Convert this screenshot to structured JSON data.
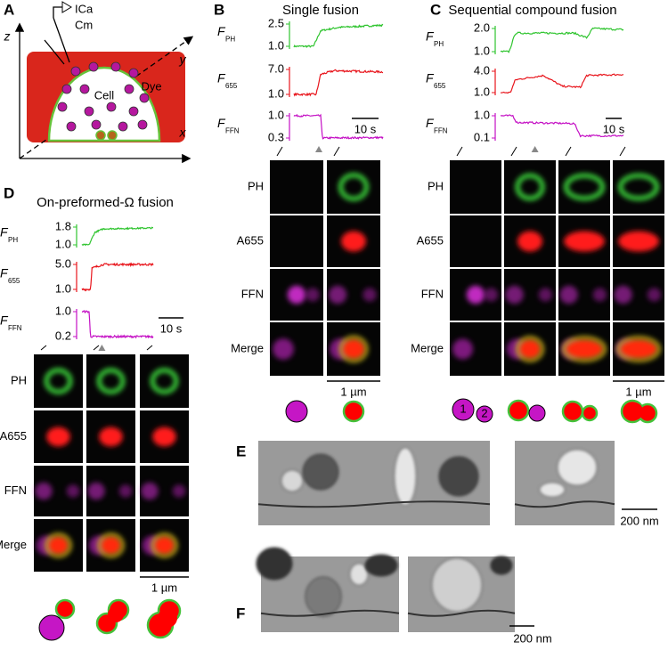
{
  "panels": {
    "A": {
      "label": "A",
      "electrode": [
        "ICa",
        "Cm"
      ],
      "cell": "Cell",
      "dye": "Dye",
      "axes": [
        "z",
        "y",
        "x"
      ]
    },
    "B": {
      "label": "B",
      "title": "Single fusion",
      "traces": [
        {
          "symbol": "F",
          "sub": "PH",
          "ticks": [
            "2.5",
            "1.0"
          ]
        },
        {
          "symbol": "F",
          "sub": "655",
          "ticks": [
            "7.0",
            "1.0"
          ]
        },
        {
          "symbol": "F",
          "sub": "FFN",
          "ticks": [
            "1.0",
            "0.3"
          ]
        }
      ],
      "time_scale": "10 s",
      "rows": [
        "PH",
        "A655",
        "FFN",
        "Merge"
      ],
      "space_scale": "1 µm"
    },
    "C": {
      "label": "C",
      "title": "Sequential compound fusion",
      "traces": [
        {
          "symbol": "F",
          "sub": "PH",
          "ticks": [
            "2.0",
            "1.0"
          ]
        },
        {
          "symbol": "F",
          "sub": "655",
          "ticks": [
            "4.0",
            "1.0"
          ]
        },
        {
          "symbol": "F",
          "sub": "FFN",
          "ticks": [
            "1.0",
            "0.1"
          ]
        }
      ],
      "time_scale": "10 s",
      "rows": [
        "PH",
        "A655",
        "FFN",
        "Merge"
      ],
      "space_scale": "1 µm",
      "vesicle_numbers": [
        "1",
        "2"
      ]
    },
    "D": {
      "label": "D",
      "title": "On-preformed-Ω  fusion",
      "traces": [
        {
          "symbol": "F",
          "sub": "PH",
          "ticks": [
            "1.8",
            "1.0"
          ]
        },
        {
          "symbol": "F",
          "sub": "655",
          "ticks": [
            "5.0",
            "1.0"
          ]
        },
        {
          "symbol": "F",
          "sub": "FFN",
          "ticks": [
            "1.0",
            "0.2"
          ]
        }
      ],
      "time_scale": "10 s",
      "rows": [
        "PH",
        "A655",
        "FFN",
        "Merge"
      ],
      "space_scale": "1 µm"
    },
    "E": {
      "label": "E",
      "scale": "200 nm"
    },
    "F": {
      "label": "F",
      "scale": "200 nm"
    }
  }
}
